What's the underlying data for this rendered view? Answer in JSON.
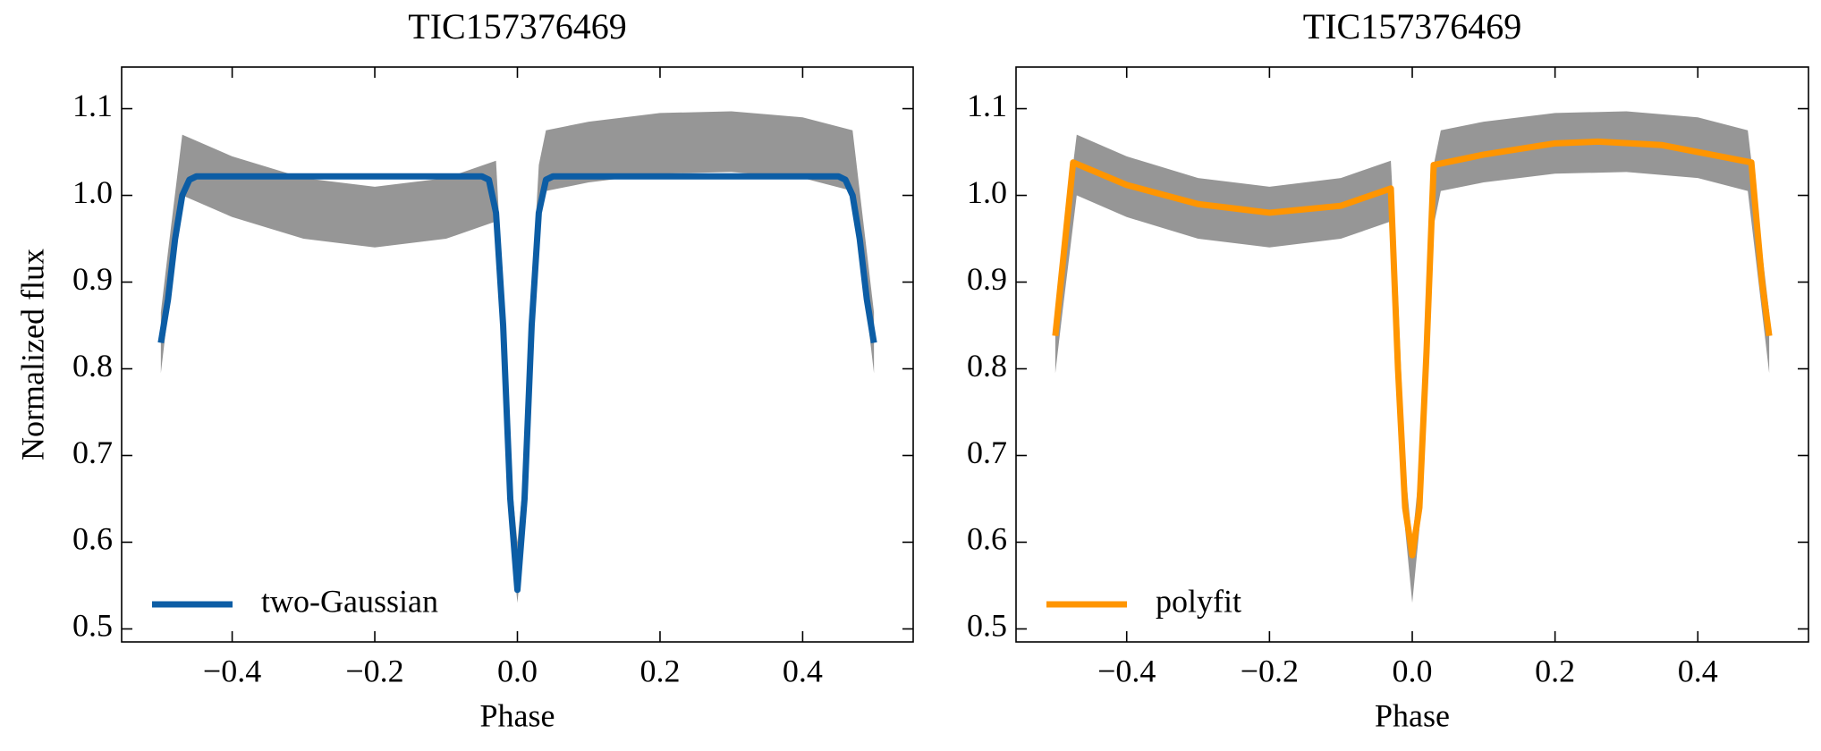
{
  "chart_data": [
    {
      "type": "line",
      "title": "TIC157376469",
      "xlabel": "Phase",
      "ylabel": "Normalized flux",
      "xlim": [
        -0.555,
        0.555
      ],
      "ylim": [
        0.485,
        1.148
      ],
      "xticks": [
        {
          "value": -0.4,
          "label": "−0.4"
        },
        {
          "value": -0.2,
          "label": "−0.2"
        },
        {
          "value": 0,
          "label": "0.0"
        },
        0.2,
        0.4
      ],
      "yticks": [
        0.5,
        0.6,
        0.7,
        0.8,
        0.9,
        {
          "value": 1.0,
          "label": "1.0"
        },
        1.1
      ],
      "legend": "lower left",
      "scatter_band": {
        "color": "#404040",
        "x": [
          -0.5,
          -0.49,
          -0.47,
          -0.4,
          -0.3,
          -0.2,
          -0.1,
          -0.03,
          -0.02,
          -0.01,
          0,
          0.01,
          0.02,
          0.03,
          0.04,
          0.1,
          0.2,
          0.3,
          0.4,
          0.47,
          0.49,
          0.5
        ],
        "lower": [
          0.795,
          0.865,
          1.0,
          0.975,
          0.95,
          0.94,
          0.95,
          0.97,
          0.815,
          0.615,
          0.53,
          0.615,
          0.815,
          0.965,
          1.005,
          1.015,
          1.025,
          1.027,
          1.02,
          1.005,
          0.865,
          0.795
        ],
        "upper": [
          0.865,
          0.935,
          1.07,
          1.045,
          1.02,
          1.01,
          1.02,
          1.04,
          0.885,
          0.685,
          0.6,
          0.685,
          0.885,
          1.035,
          1.075,
          1.085,
          1.095,
          1.097,
          1.09,
          1.075,
          0.935,
          0.865
        ]
      },
      "series": [
        {
          "name": "two-Gaussian",
          "color": "#0c5da5",
          "x": [
            -0.5,
            -0.49,
            -0.48,
            -0.47,
            -0.46,
            -0.45,
            -0.05,
            -0.04,
            -0.03,
            -0.02,
            -0.01,
            0,
            0.01,
            0.02,
            0.03,
            0.04,
            0.05,
            0.45,
            0.46,
            0.47,
            0.48,
            0.49,
            0.5
          ],
          "values": [
            0.83,
            0.88,
            0.95,
            1.0,
            1.018,
            1.022,
            1.022,
            1.018,
            0.98,
            0.85,
            0.65,
            0.545,
            0.65,
            0.85,
            0.98,
            1.018,
            1.022,
            1.022,
            1.018,
            1.0,
            0.95,
            0.88,
            0.83
          ]
        }
      ]
    },
    {
      "type": "line",
      "title": "TIC157376469",
      "xlabel": "Phase",
      "xlim": [
        -0.555,
        0.555
      ],
      "ylim": [
        0.485,
        1.148
      ],
      "xticks": [
        {
          "value": -0.4,
          "label": "−0.4"
        },
        {
          "value": -0.2,
          "label": "−0.2"
        },
        {
          "value": 0,
          "label": "0.0"
        },
        0.2,
        0.4
      ],
      "yticks": [
        0.5,
        0.6,
        0.7,
        0.8,
        0.9,
        {
          "value": 1.0,
          "label": "1.0"
        },
        1.1
      ],
      "legend": "lower left",
      "scatter_band": {
        "color": "#404040",
        "x": [
          -0.5,
          -0.49,
          -0.47,
          -0.4,
          -0.3,
          -0.2,
          -0.1,
          -0.03,
          -0.02,
          -0.01,
          0,
          0.01,
          0.02,
          0.03,
          0.04,
          0.1,
          0.2,
          0.3,
          0.4,
          0.47,
          0.49,
          0.5
        ],
        "lower": [
          0.795,
          0.865,
          1.0,
          0.975,
          0.95,
          0.94,
          0.95,
          0.97,
          0.815,
          0.615,
          0.53,
          0.615,
          0.815,
          0.965,
          1.005,
          1.015,
          1.025,
          1.027,
          1.02,
          1.005,
          0.865,
          0.795
        ],
        "upper": [
          0.865,
          0.935,
          1.07,
          1.045,
          1.02,
          1.01,
          1.02,
          1.04,
          0.885,
          0.685,
          0.6,
          0.685,
          0.885,
          1.035,
          1.075,
          1.085,
          1.095,
          1.097,
          1.09,
          1.075,
          0.935,
          0.865
        ]
      },
      "series": [
        {
          "name": "polyfit",
          "color": "#ff9500",
          "x": [
            -0.5,
            -0.475,
            -0.4,
            -0.3,
            -0.2,
            -0.1,
            -0.03,
            -0.02,
            -0.01,
            0,
            0.01,
            0.02,
            0.03,
            0.1,
            0.2,
            0.26,
            0.35,
            0.475,
            0.49,
            0.5
          ],
          "values": [
            0.838,
            1.038,
            1.012,
            0.99,
            0.98,
            0.988,
            1.008,
            0.8,
            0.64,
            0.585,
            0.64,
            0.82,
            1.035,
            1.047,
            1.06,
            1.062,
            1.058,
            1.038,
            0.9,
            0.838
          ]
        }
      ]
    }
  ]
}
